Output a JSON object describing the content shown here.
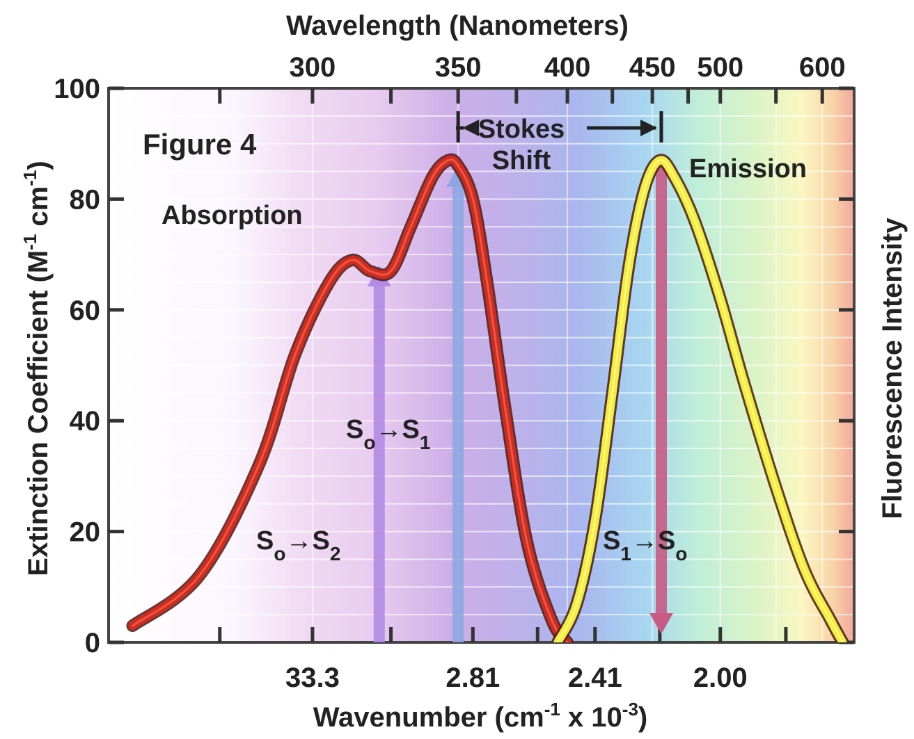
{
  "chart_data": {
    "type": "line",
    "figure_label": "Figure 4",
    "x_bottom": {
      "label_main": "Wavenumber (cm",
      "label_sup1": "-1",
      "label_mid": " x 10",
      "label_sup2": "-3",
      "label_end": ")",
      "ticks": [
        "33.3",
        "2.81",
        "2.41",
        "2.00"
      ]
    },
    "x_top": {
      "label": "Wavelength (Nanometers)",
      "ticks": [
        300,
        350,
        400,
        450,
        500,
        600
      ]
    },
    "y_left": {
      "label_main": "Extinction Coefficient (M",
      "label_sup1": "-1",
      "label_mid": " cm",
      "label_sup2": "-1",
      "label_end": ")",
      "ticks": [
        0,
        20,
        40,
        60,
        80,
        100
      ],
      "ylim": [
        0,
        100
      ]
    },
    "y_right": {
      "label": "Fluorescence Intensity"
    },
    "series": [
      {
        "name": "Absorption",
        "color": "#d42a1e",
        "x_nm": [
          255,
          270,
          285,
          295,
          305,
          312,
          318,
          325,
          332,
          340,
          346,
          350,
          356,
          362,
          370,
          380,
          392,
          400
        ],
        "y": [
          3,
          12,
          32,
          52,
          65,
          69,
          67,
          67,
          75,
          84,
          87,
          86,
          80,
          65,
          42,
          18,
          4,
          0
        ]
      },
      {
        "name": "Emission",
        "color": "#f2ee3a",
        "x_nm": [
          395,
          405,
          415,
          425,
          435,
          445,
          455,
          465,
          480,
          500,
          520,
          550,
          580,
          610,
          625
        ],
        "y": [
          0,
          7,
          22,
          45,
          68,
          82,
          87,
          84,
          76,
          62,
          47,
          28,
          13,
          4,
          0
        ]
      }
    ],
    "transitions": [
      {
        "from": "S",
        "from_sub": "o",
        "to": "S",
        "to_sub": "2",
        "x_nm": 321,
        "y_top": 68,
        "direction": "up",
        "color": "#b28be6"
      },
      {
        "from": "S",
        "from_sub": "o",
        "to": "S",
        "to_sub": "1",
        "x_nm": 350,
        "y_top": 86,
        "direction": "up",
        "color": "#8ea7e2"
      },
      {
        "from": "S",
        "from_sub": "1",
        "to": "S",
        "to_sub": "o",
        "x_nm": 456,
        "y_top": 86,
        "direction": "down",
        "color": "#c85a84"
      }
    ],
    "stokes_shift": {
      "line1": "Stokes",
      "line2": "Shift",
      "from_nm": 350,
      "to_nm": 456
    },
    "grid": true
  }
}
